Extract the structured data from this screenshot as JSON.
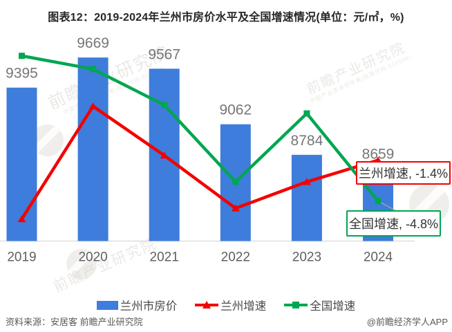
{
  "title": "图表12：2019-2024年兰州市房价水平及全国增速情况(单位：元/㎡，%)",
  "chart_data": {
    "type": "bar",
    "subtype": "bar-line-combo",
    "categories": [
      "2019",
      "2020",
      "2021",
      "2022",
      "2023",
      "2024"
    ],
    "series": [
      {
        "name": "兰州市房价",
        "type": "bar",
        "unit": "元/㎡",
        "color": "#3E7DDB",
        "values": [
          9395,
          9669,
          9567,
          9062,
          8784,
          8659
        ],
        "value_labels_shown": true
      },
      {
        "name": "兰州增速",
        "type": "line",
        "unit": "%",
        "color": "#F40000",
        "marker": "triangle",
        "values": [
          -6.3,
          3.1,
          -1.0,
          -5.4,
          -3.2,
          -1.4
        ]
      },
      {
        "name": "全国增速",
        "type": "line",
        "unit": "%",
        "color": "#00A651",
        "marker": "square",
        "values": [
          7.3,
          6.2,
          3.2,
          -3.2,
          2.5,
          -4.8
        ]
      }
    ],
    "value_axis": {
      "visible": false,
      "grid": false,
      "bar_axis_min": 8000
    },
    "legend_position": "bottom",
    "annotations": [
      {
        "text": "兰州增速, -1.4%",
        "series": "兰州增速",
        "border_color": "#F40000"
      },
      {
        "text": "全国增速, -4.8%",
        "series": "全国增速",
        "border_color": "#00A651"
      }
    ]
  },
  "label_colors": {
    "bar_value": "#767676",
    "x_tick": "#5F5F5F",
    "axis_line": "#D9D9D9"
  },
  "watermark": {
    "text": "前瞻产业研究院",
    "subtext": "中国产业咨询领导者(股票代码:839599)"
  },
  "footer": {
    "source": "资料来源：安居客 前瞻产业研究院",
    "credit": "@前瞻经济学人APP"
  }
}
